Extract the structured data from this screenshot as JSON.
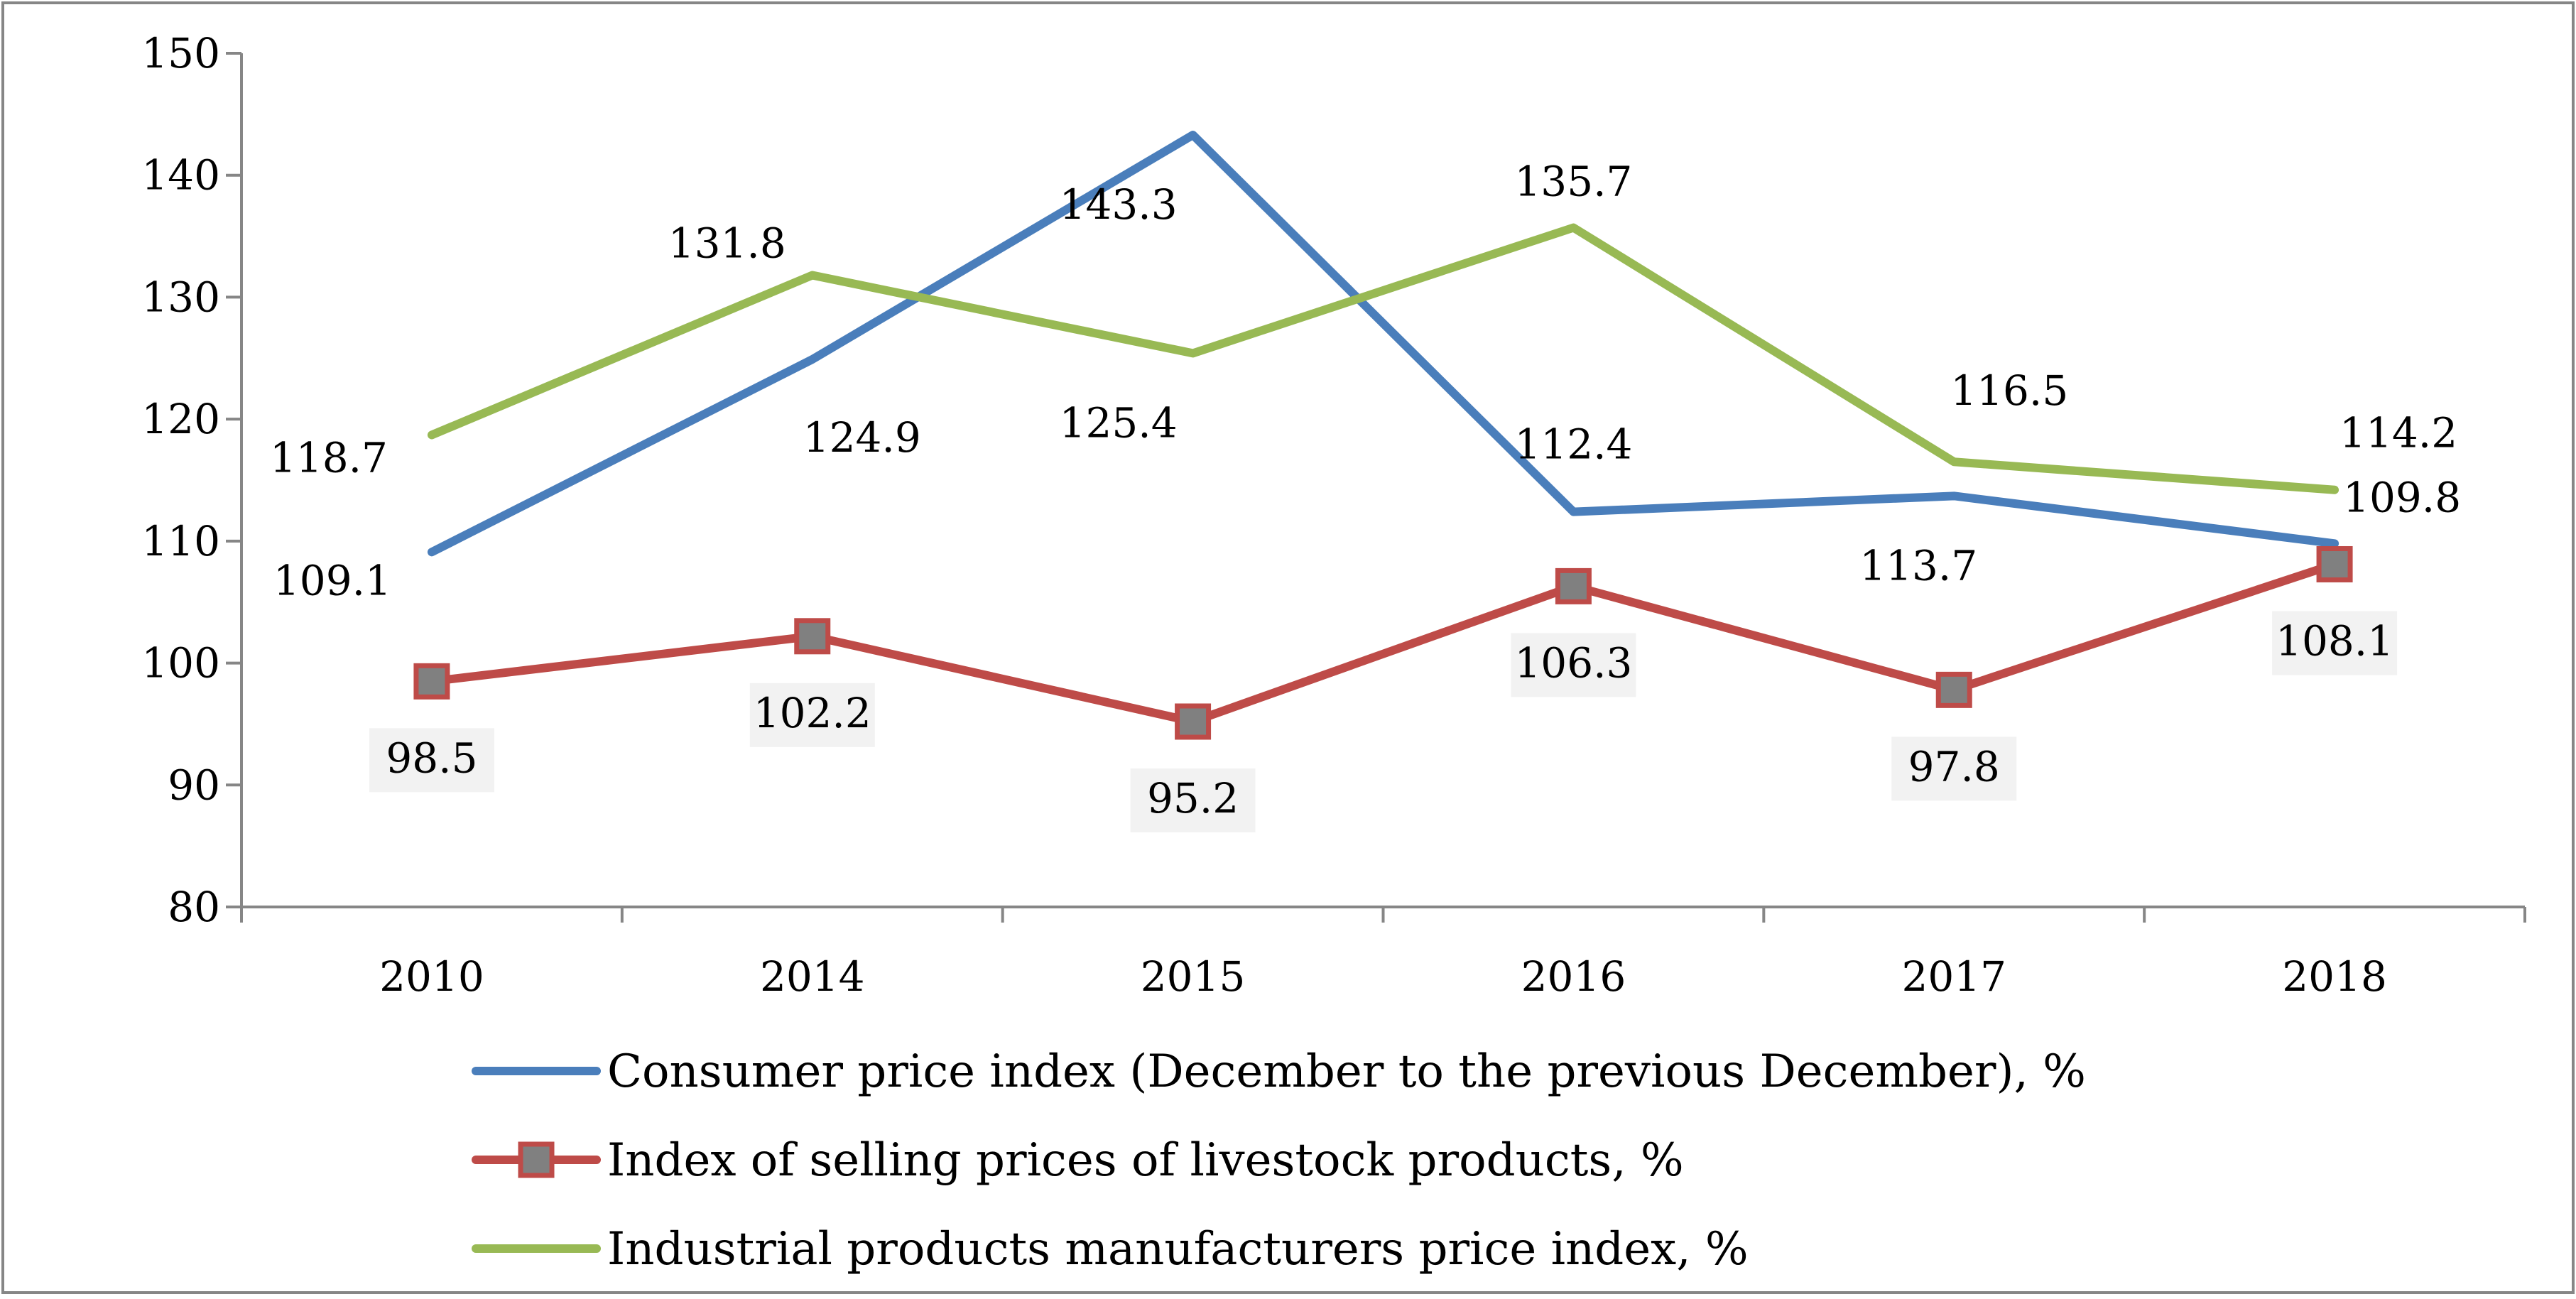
{
  "chart_data": {
    "type": "line",
    "title": "",
    "xlabel": "",
    "ylabel": "",
    "categories": [
      "2010",
      "2014",
      "2015",
      "2016",
      "2017",
      "2018"
    ],
    "ylim": [
      80,
      150
    ],
    "yticks": [
      80,
      90,
      100,
      110,
      120,
      130,
      140,
      150
    ],
    "grid": false,
    "legend_position": "bottom",
    "series": [
      {
        "name": "Consumer price index (December to the previous December), %",
        "color": "#4a7ebb",
        "marker": "none",
        "values": [
          109.1,
          124.9,
          143.3,
          112.4,
          113.7,
          109.8
        ],
        "labels": [
          "109.1",
          "124.9",
          "143.3",
          "112.4",
          "113.7",
          "109.8"
        ]
      },
      {
        "name": "Index of selling prices of livestock products, %",
        "color": "#be4b48",
        "marker": "square",
        "marker_fill": "#808080",
        "label_background": "#f2f2f2",
        "values": [
          98.5,
          102.2,
          95.2,
          106.3,
          97.8,
          108.1
        ],
        "labels": [
          "98.5",
          "102.2",
          "95.2",
          "106.3",
          "97.8",
          "108.1"
        ]
      },
      {
        "name": "Industrial products manufacturers price index, %",
        "color": "#98b954",
        "marker": "none",
        "values": [
          118.7,
          131.8,
          125.4,
          135.7,
          116.5,
          114.2
        ],
        "labels": [
          "118.7",
          "131.8",
          "125.4",
          "135.7",
          "116.5",
          "114.2"
        ]
      }
    ]
  }
}
